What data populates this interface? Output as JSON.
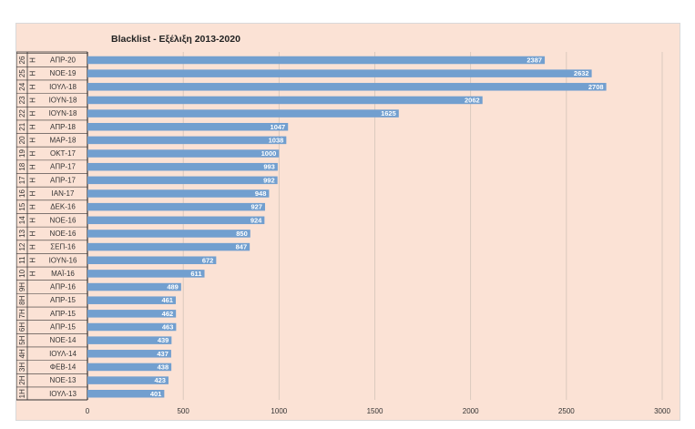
{
  "chart_data": {
    "type": "bar",
    "orientation": "horizontal",
    "title": "Blacklist - Εξέλιξη 2013-2020",
    "xlim": [
      0,
      3000
    ],
    "x_ticks": [
      "0",
      "500",
      "1000",
      "1500",
      "2000",
      "2500",
      "3000"
    ],
    "grid": "vertical",
    "bar_color": "#729fcf",
    "background_color": "#fbe2d5",
    "rows": [
      {
        "group": "26",
        "sub": "Η",
        "date": "ΑΠΡ-20",
        "value": 2387
      },
      {
        "group": "25",
        "sub": "Η",
        "date": "ΝΟΕ-19",
        "value": 2632
      },
      {
        "group": "24",
        "sub": "Η",
        "date": "ΙΟΥΛ-18",
        "value": 2708
      },
      {
        "group": "23",
        "sub": "Η",
        "date": "ΙΟΥΝ-18",
        "value": 2062
      },
      {
        "group": "22",
        "sub": "Η",
        "date": "ΙΟΥΝ-18",
        "value": 1625
      },
      {
        "group": "21",
        "sub": "Η",
        "date": "ΑΠΡ-18",
        "value": 1047
      },
      {
        "group": "20",
        "sub": "Η",
        "date": "ΜΑΡ-18",
        "value": 1038
      },
      {
        "group": "19",
        "sub": "Η",
        "date": "ΟΚΤ-17",
        "value": 1000
      },
      {
        "group": "18",
        "sub": "Η",
        "date": "ΑΠΡ-17",
        "value": 993
      },
      {
        "group": "17",
        "sub": "Η",
        "date": "ΑΠΡ-17",
        "value": 992
      },
      {
        "group": "16",
        "sub": "Η",
        "date": "ΙΑΝ-17",
        "value": 948
      },
      {
        "group": "15",
        "sub": "Η",
        "date": "ΔΕΚ-16",
        "value": 927
      },
      {
        "group": "14",
        "sub": "Η",
        "date": "ΝΟΕ-16",
        "value": 924
      },
      {
        "group": "13",
        "sub": "Η",
        "date": "ΝΟΕ-16",
        "value": 850
      },
      {
        "group": "12",
        "sub": "Η",
        "date": "ΣΕΠ-16",
        "value": 847
      },
      {
        "group": "11",
        "sub": "Η",
        "date": "ΙΟΥΝ-16",
        "value": 672
      },
      {
        "group": "10",
        "sub": "Η",
        "date": "ΜΑΪ-16",
        "value": 611
      },
      {
        "group": "9Η",
        "sub": "",
        "date": "ΑΠΡ-16",
        "value": 489
      },
      {
        "group": "8Η",
        "sub": "",
        "date": "ΑΠΡ-15",
        "value": 461
      },
      {
        "group": "7Η",
        "sub": "",
        "date": "ΑΠΡ-15",
        "value": 462
      },
      {
        "group": "6Η",
        "sub": "",
        "date": "ΑΠΡ-15",
        "value": 463
      },
      {
        "group": "5Η",
        "sub": "",
        "date": "ΝΟΕ-14",
        "value": 439
      },
      {
        "group": "4Η",
        "sub": "",
        "date": "ΙΟΥΛ-14",
        "value": 437
      },
      {
        "group": "3Η",
        "sub": "",
        "date": "ΦΕΒ-14",
        "value": 438
      },
      {
        "group": "2Η",
        "sub": "",
        "date": "ΝΟΕ-13",
        "value": 423
      },
      {
        "group": "1Η",
        "sub": "",
        "date": "ΙΟΥΛ-13",
        "value": 401
      }
    ]
  }
}
